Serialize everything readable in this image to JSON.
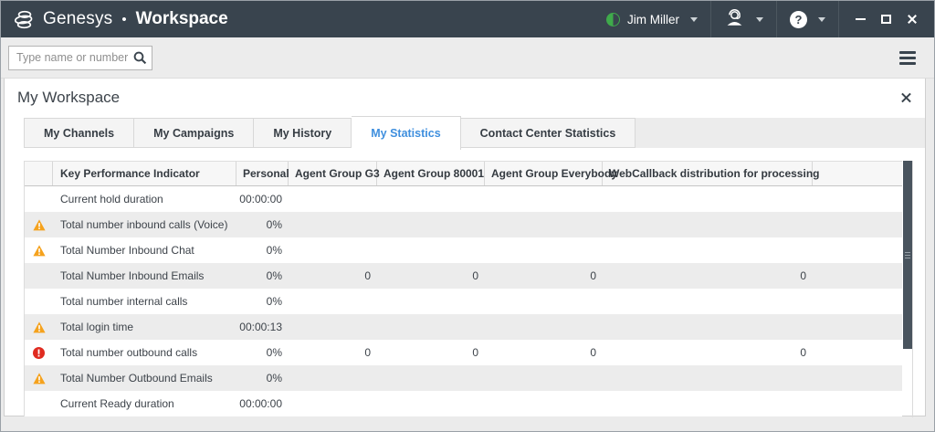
{
  "titlebar": {
    "brand": "Genesys",
    "separator": "•",
    "app": "Workspace",
    "user": {
      "name": "Jim Miller",
      "status": "ready"
    },
    "help_label": "?"
  },
  "searchbar": {
    "placeholder": "Type name or number"
  },
  "panel": {
    "title": "My Workspace"
  },
  "tabs": [
    {
      "label": "My Channels",
      "active": false
    },
    {
      "label": "My Campaigns",
      "active": false
    },
    {
      "label": "My History",
      "active": false
    },
    {
      "label": "My Statistics",
      "active": true
    },
    {
      "label": "Contact Center Statistics",
      "active": false
    }
  ],
  "table": {
    "columns": [
      "",
      "Key Performance Indicator",
      "Personal",
      "Agent Group G3",
      "Agent Group 80001",
      "Agent Group Everybody",
      "WebCallback distribution for processing"
    ],
    "rows": [
      {
        "icon": "",
        "kpi": "Current hold duration",
        "personal": "00:00:00",
        "g3": "",
        "g80001": "",
        "everybody": "",
        "web": ""
      },
      {
        "icon": "warning",
        "kpi": "Total number inbound calls (Voice)",
        "personal": "0%",
        "g3": "",
        "g80001": "",
        "everybody": "",
        "web": ""
      },
      {
        "icon": "warning",
        "kpi": "Total Number Inbound Chat",
        "personal": "0%",
        "g3": "",
        "g80001": "",
        "everybody": "",
        "web": ""
      },
      {
        "icon": "",
        "kpi": "Total Number Inbound Emails",
        "personal": "0%",
        "g3": "0",
        "g80001": "0",
        "everybody": "0",
        "web": "0"
      },
      {
        "icon": "",
        "kpi": "Total number internal calls",
        "personal": "0%",
        "g3": "",
        "g80001": "",
        "everybody": "",
        "web": ""
      },
      {
        "icon": "warning",
        "kpi": "Total login time",
        "personal": "00:00:13",
        "g3": "",
        "g80001": "",
        "everybody": "",
        "web": ""
      },
      {
        "icon": "error",
        "kpi": "Total number outbound calls",
        "personal": "0%",
        "g3": "0",
        "g80001": "0",
        "everybody": "0",
        "web": "0"
      },
      {
        "icon": "warning",
        "kpi": "Total Number Outbound Emails",
        "personal": "0%",
        "g3": "",
        "g80001": "",
        "everybody": "",
        "web": ""
      },
      {
        "icon": "",
        "kpi": "Current Ready duration",
        "personal": "00:00:00",
        "g3": "",
        "g80001": "",
        "everybody": "",
        "web": ""
      }
    ]
  },
  "colors": {
    "titlebar_bg": "#39444E",
    "accent_blue": "#3F8FDE",
    "warning_orange": "#F5A21D",
    "error_red": "#E02B20",
    "status_green": "#3FAA4B"
  }
}
